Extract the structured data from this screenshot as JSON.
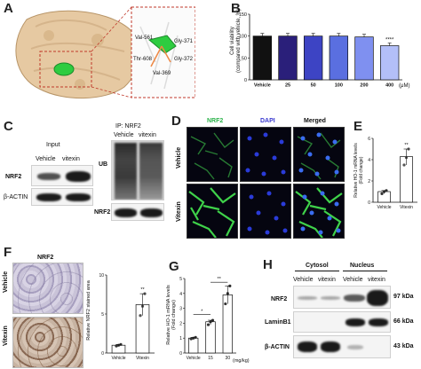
{
  "panels": {
    "A": {
      "letter": "A",
      "residues": [
        "Val-561",
        "Gly-371",
        "Thr-608",
        "Gly-372",
        "Val-369"
      ]
    },
    "B": {
      "letter": "B",
      "ylabel": "Cell viability\n(compared with vehicle, %)",
      "unit": "(μM)",
      "significance": "****"
    },
    "C": {
      "letter": "C",
      "input_title": "Input",
      "ip_title": "IP: NRF2",
      "lane_vehicle": "Vehicle",
      "lane_vitexin": "vitexin",
      "ip_lane_vehicle": "Vehicle",
      "ip_lane_vitexin": "vitexin",
      "row_nrf2": "NRF2",
      "row_actin": "β-ACTIN",
      "row_ub": "UB",
      "row_ip_nrf2": "NRF2"
    },
    "D": {
      "letter": "D",
      "col_nrf2": "NRF2",
      "col_dapi": "DAPI",
      "col_merged": "Merged",
      "row_vehicle": "Vehicle",
      "row_vitexin": "Vitexin"
    },
    "E": {
      "letter": "E",
      "ylabel": "Relative HO-1 mRNA levels\n(Fold change)",
      "significance": "**"
    },
    "F": {
      "letter": "F",
      "title": "NRF2",
      "row_vehicle": "Vehicle",
      "row_vitexin": "Vitexin",
      "ylabel": "Relative NRF2 stained area",
      "significance": "**"
    },
    "G": {
      "letter": "G",
      "ylabel": "Relative HO-1 mRNA levels\n(Fold change)",
      "unit": "(mg/kg)",
      "sig_low": "*",
      "sig_high": "**"
    },
    "H": {
      "letter": "H",
      "cytosol": "Cytosol",
      "nucleus": "Nucleus",
      "lanes": [
        "Vehicle",
        "vitexin",
        "Vehicle",
        "vitexin"
      ],
      "row_nrf2": "NRF2",
      "row_lamin": "LaminB1",
      "row_actin": "β-ACTIN",
      "kda_nrf2": "97 kDa",
      "kda_lamin": "66 kDa",
      "kda_actin": "43 kDa"
    }
  },
  "chart_data": [
    {
      "id": "B",
      "type": "bar",
      "categories": [
        "Vehicle",
        "25",
        "50",
        "100",
        "200",
        "400"
      ],
      "values": [
        100,
        100,
        100,
        100,
        98,
        78
      ],
      "colors": [
        "#111111",
        "#2a1f7a",
        "#3d44c4",
        "#5a6fe0",
        "#7f90f0",
        "#b3bff8"
      ],
      "ylim": [
        0,
        150
      ],
      "yticks": [
        0,
        50,
        100,
        150
      ],
      "significance": {
        "400": "****"
      }
    },
    {
      "id": "E",
      "type": "bar",
      "categories": [
        "Vehicle",
        "Vitexin"
      ],
      "values": [
        1.0,
        4.3
      ],
      "points": [
        [
          0.8,
          1.0,
          1.1
        ],
        [
          3.5,
          4.2,
          5.0
        ]
      ],
      "ylim": [
        0,
        6
      ],
      "yticks": [
        0,
        2,
        4,
        6
      ]
    },
    {
      "id": "F",
      "type": "bar",
      "categories": [
        "Vehicle",
        "Vitexin"
      ],
      "values": [
        1.0,
        6.2
      ],
      "points": [
        [
          0.9,
          1.0,
          1.1
        ],
        [
          4.8,
          6.0,
          7.6
        ]
      ],
      "ylim": [
        0,
        10
      ],
      "yticks": [
        0,
        5,
        10
      ]
    },
    {
      "id": "G",
      "type": "bar",
      "categories": [
        "Vehicle",
        "15",
        "30"
      ],
      "values": [
        1.0,
        2.1,
        3.9
      ],
      "points": [
        [
          0.95,
          1.0,
          1.05
        ],
        [
          1.9,
          2.1,
          2.2
        ],
        [
          3.3,
          4.0,
          4.5
        ]
      ],
      "ylim": [
        0,
        5
      ],
      "yticks": [
        0,
        1,
        2,
        3,
        4,
        5
      ]
    }
  ]
}
